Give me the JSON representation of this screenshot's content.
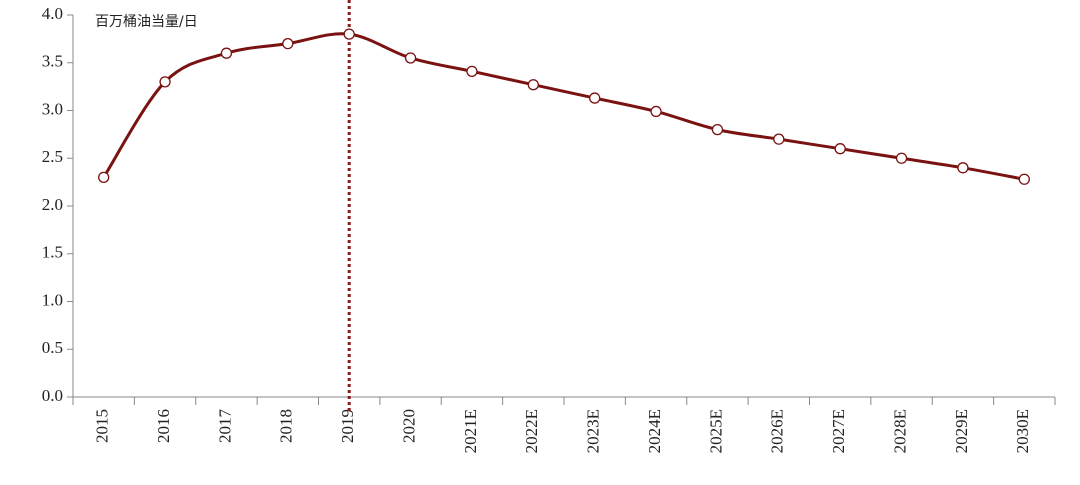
{
  "chart_data": {
    "type": "line",
    "annotation": "百万桶油当量/日",
    "categories": [
      "2015",
      "2016",
      "2017",
      "2018",
      "2019",
      "2020",
      "2021E",
      "2022E",
      "2023E",
      "2024E",
      "2025E",
      "2026E",
      "2027E",
      "2028E",
      "2029E",
      "2030E"
    ],
    "values": [
      2.3,
      3.3,
      3.6,
      3.7,
      3.8,
      3.55,
      3.41,
      3.27,
      3.13,
      2.99,
      2.8,
      2.7,
      2.6,
      2.5,
      2.4,
      2.28
    ],
    "color": "#7a1212",
    "smooth": true,
    "ylim": [
      0,
      4
    ],
    "yticks": [
      {
        "value": 0,
        "label": "0.0"
      },
      0.5,
      {
        "value": 1,
        "label": "1.0"
      },
      1.5,
      {
        "value": 2,
        "label": "2.0"
      },
      2.5,
      {
        "value": 3,
        "label": "3.0"
      },
      3.5,
      {
        "value": 4,
        "label": "4.0"
      }
    ],
    "grid": false,
    "reference_line": {
      "category": "2019",
      "style": "dotted",
      "color": "#8b1a1a"
    }
  }
}
